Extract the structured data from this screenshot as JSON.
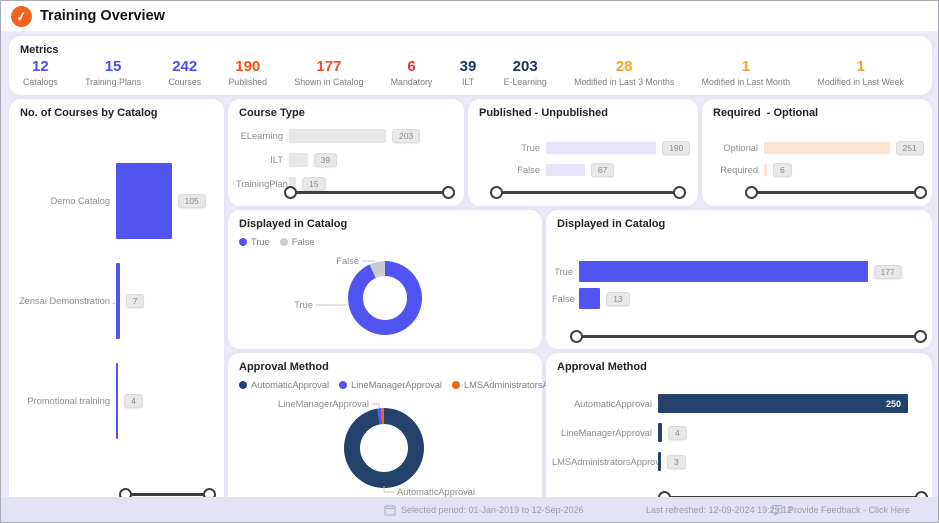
{
  "header": {
    "title": "Training Overview",
    "logo": "check-icon",
    "logo_color": "#F4621D"
  },
  "metrics": {
    "title": "Metrics",
    "items": [
      {
        "value": "12",
        "label": "Catalogs",
        "color": "#4B4FE8"
      },
      {
        "value": "15",
        "label": "Training Plans",
        "color": "#4B4FE8"
      },
      {
        "value": "242",
        "label": "Courses",
        "color": "#4B4FE8"
      },
      {
        "value": "190",
        "label": "Published",
        "color": "#FF4B1A"
      },
      {
        "value": "177",
        "label": "Shown in Catalog",
        "color": "#FF4B1A"
      },
      {
        "value": "6",
        "label": "Mandatory",
        "color": "#E1343A"
      },
      {
        "value": "39",
        "label": "ILT",
        "color": "#17355E"
      },
      {
        "value": "203",
        "label": "E-Learning",
        "color": "#17355E"
      },
      {
        "value": "28",
        "label": "Modified in Last 3 Months",
        "color": "#F7A426"
      },
      {
        "value": "1",
        "label": "Modified in Last Month",
        "color": "#F7A426"
      },
      {
        "value": "1",
        "label": "Modified in Last Week",
        "color": "#F7A426"
      }
    ]
  },
  "panels": {
    "courses_by_catalog": {
      "title": "No. of Courses by Catalog",
      "rows": [
        {
          "label": "Demo Catalog",
          "value": 105
        },
        {
          "label": "Zensai Demonstration ...",
          "value": 7
        },
        {
          "label": "Promotional training",
          "value": 4
        }
      ]
    },
    "course_type": {
      "title": "Course Type",
      "rows": [
        {
          "label": "ELearning",
          "value": 203
        },
        {
          "label": "ILT",
          "value": 39
        },
        {
          "label": "TrainingPlan",
          "value": 15
        }
      ]
    },
    "published": {
      "title": "Published - Unpublished",
      "rows": [
        {
          "label": "True",
          "value": 190
        },
        {
          "label": "False",
          "value": 67
        }
      ]
    },
    "required": {
      "title": "Required  - Optional",
      "rows": [
        {
          "label": "Optional",
          "value": 251
        },
        {
          "label": "Required",
          "value": 6
        }
      ]
    },
    "displayed_donut": {
      "title": "Displayed in Catalog",
      "legend": [
        {
          "label": "True",
          "color": "#5254F2"
        },
        {
          "label": "False",
          "color": "#C9CCD1"
        }
      ],
      "slices": [
        {
          "label": "True",
          "value": 177,
          "color": "#5254F2"
        },
        {
          "label": "False",
          "value": 13,
          "color": "#C9CCD1"
        }
      ]
    },
    "displayed_bars": {
      "title": "Displayed in Catalog",
      "rows": [
        {
          "label": "True",
          "value": 177
        },
        {
          "label": "False",
          "value": 13
        }
      ]
    },
    "approval_donut": {
      "title": "Approval Method",
      "legend": [
        {
          "label": "AutomaticApproval",
          "color": "#24426B"
        },
        {
          "label": "LineManagerApproval",
          "color": "#5254F2"
        },
        {
          "label": "LMSAdministratorsApproval",
          "color": "#F4631E"
        }
      ],
      "slices": [
        {
          "label": "AutomaticApproval",
          "value": 250,
          "color": "#24426B"
        },
        {
          "label": "LineManagerApproval",
          "value": 4,
          "color": "#5254F2"
        },
        {
          "label": "LMSAdministratorsApproval",
          "value": 3,
          "color": "#F4631E"
        }
      ]
    },
    "approval_bars": {
      "title": "Approval Method",
      "rows": [
        {
          "label": "AutomaticApproval",
          "value": 250,
          "value_inside": true
        },
        {
          "label": "LineManagerApproval",
          "value": 4
        },
        {
          "label": "LMSAdministratorsApproval",
          "value": 3
        }
      ]
    }
  },
  "footer": {
    "selected_period": "Selected period: 01-Jan-2019 to 12-Sep-2026",
    "last_refreshed": "Last refreshed: 12-09-2024 19:29:12",
    "feedback": "Provide Feedback - Click Here"
  },
  "colors": {
    "page_bg": "#EAEAF8",
    "accent_indigo": "#5254F2",
    "accent_navy": "#24426B",
    "accent_orange": "#F4631E",
    "bar_grey": "#E7E7E7",
    "bar_lavender": "#E5E4F9",
    "bar_peach": "#FBE3D3",
    "footer_bg": "#E2E2F4"
  },
  "chart_data": [
    {
      "type": "bar",
      "title": "No. of Courses by Catalog",
      "categories": [
        "Demo Catalog",
        "Zensai Demonstration ...",
        "Promotional training"
      ],
      "values": [
        105,
        7,
        4
      ],
      "orientation": "horizontal"
    },
    {
      "type": "bar",
      "title": "Course Type",
      "categories": [
        "ELearning",
        "ILT",
        "TrainingPlan"
      ],
      "values": [
        203,
        39,
        15
      ],
      "orientation": "horizontal"
    },
    {
      "type": "bar",
      "title": "Published - Unpublished",
      "categories": [
        "True",
        "False"
      ],
      "values": [
        190,
        67
      ],
      "orientation": "horizontal"
    },
    {
      "type": "bar",
      "title": "Required  - Optional",
      "categories": [
        "Optional",
        "Required"
      ],
      "values": [
        251,
        6
      ],
      "orientation": "horizontal"
    },
    {
      "type": "pie",
      "title": "Displayed in Catalog",
      "categories": [
        "True",
        "False"
      ],
      "values": [
        177,
        13
      ],
      "legend_position": "top"
    },
    {
      "type": "bar",
      "title": "Displayed in Catalog",
      "categories": [
        "True",
        "False"
      ],
      "values": [
        177,
        13
      ],
      "orientation": "horizontal"
    },
    {
      "type": "pie",
      "title": "Approval Method",
      "categories": [
        "AutomaticApproval",
        "LineManagerApproval",
        "LMSAdministratorsApproval"
      ],
      "values": [
        250,
        4,
        3
      ],
      "legend_position": "top"
    },
    {
      "type": "bar",
      "title": "Approval Method",
      "categories": [
        "AutomaticApproval",
        "LineManagerApproval",
        "LMSAdministratorsApproval"
      ],
      "values": [
        250,
        4,
        3
      ],
      "orientation": "horizontal"
    }
  ]
}
